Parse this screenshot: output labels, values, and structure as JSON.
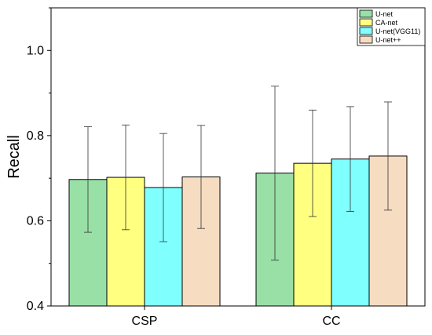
{
  "chart_data": {
    "type": "bar",
    "title": "",
    "xlabel": "",
    "ylabel": "Recall",
    "ylim": [
      0.4,
      1.1
    ],
    "yticks": [
      0.4,
      0.6,
      0.8,
      1.0
    ],
    "ytick_labels": [
      "0.4",
      "0.6",
      "0.8",
      "1.0"
    ],
    "categories": [
      "CSP",
      "CC"
    ],
    "legend_position": "top-right",
    "grid": false,
    "error_bars": true,
    "series": [
      {
        "name": "U-net",
        "color": "#98e0a6",
        "values": [
          0.697,
          0.712
        ],
        "errors": [
          0.124,
          0.204
        ]
      },
      {
        "name": "CA-net",
        "color": "#ffff80",
        "values": [
          0.702,
          0.735
        ],
        "errors": [
          0.123,
          0.125
        ]
      },
      {
        "name": "U-net(VGG11)",
        "color": "#80ffff",
        "values": [
          0.678,
          0.745
        ],
        "errors": [
          0.127,
          0.123
        ]
      },
      {
        "name": "U-net++",
        "color": "#f6dcc1",
        "values": [
          0.703,
          0.752
        ],
        "errors": [
          0.121,
          0.127
        ]
      }
    ]
  }
}
